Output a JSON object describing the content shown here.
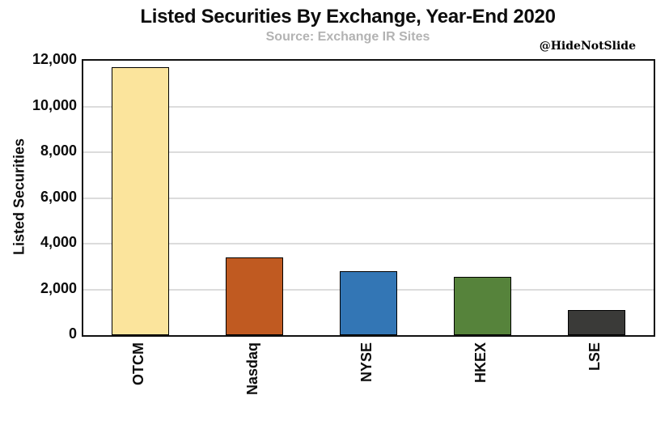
{
  "title": "Listed Securities By Exchange, Year-End 2020",
  "subtitle": "Source: Exchange IR Sites",
  "watermark": "@HideNotSlide",
  "chart_data": {
    "type": "bar",
    "title": "Listed Securities By Exchange, Year-End 2020",
    "subtitle": "Source: Exchange IR Sites",
    "categories": [
      "OTCM",
      "Nasdaq",
      "NYSE",
      "HKEX",
      "LSE"
    ],
    "values": [
      11700,
      3400,
      2800,
      2550,
      1100
    ],
    "xlabel": "",
    "ylabel": "Listed Securities",
    "ylim": [
      0,
      12000
    ],
    "ytick_interval": 2000,
    "ytick_labels": [
      "0",
      "2,000",
      "4,000",
      "6,000",
      "8,000",
      "10,000",
      "12,000"
    ],
    "grid": "horizontal-only",
    "legend": "none",
    "bar_colors": [
      "#FBE49C",
      "#C05A21",
      "#3376B5",
      "#56833B",
      "#3A3A38"
    ],
    "bar_edge_color": "#000000",
    "gridline_color": "#DCDCDC",
    "subtitle_color": "#B3B3B3",
    "annotation": "@HideNotSlide"
  }
}
